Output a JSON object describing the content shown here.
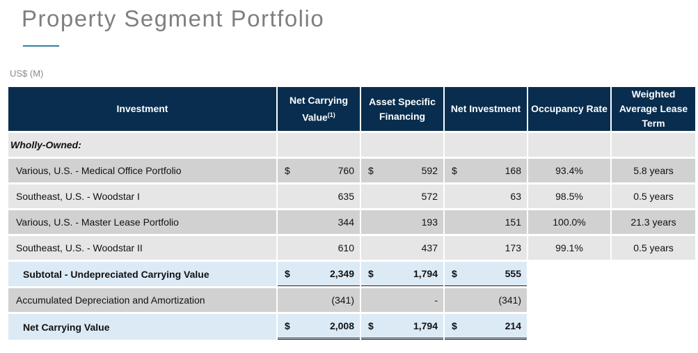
{
  "page": {
    "title": "Property Segment Portfolio",
    "unit": "US$ (M)"
  },
  "table": {
    "headers": {
      "investment": "Investment",
      "ncv": "Net Carrying Value",
      "ncv_note": "(1)",
      "financing": "Asset Specific Financing",
      "net_investment": "Net Investment",
      "occupancy": "Occupancy Rate",
      "walt": "Weighted Average Lease Term"
    },
    "section_label": "Wholly-Owned:",
    "currency_symbol": "$",
    "rows": [
      {
        "name": "Various, U.S. - Medical Office Portfolio",
        "ncv": "760",
        "financing": "592",
        "net": "168",
        "occupancy": "93.4%",
        "term": "5.8 years"
      },
      {
        "name": "Southeast, U.S. - Woodstar I",
        "ncv": "635",
        "financing": "572",
        "net": "63",
        "occupancy": "98.5%",
        "term": "0.5 years"
      },
      {
        "name": "Various, U.S. - Master Lease Portfolio",
        "ncv": "344",
        "financing": "193",
        "net": "151",
        "occupancy": "100.0%",
        "term": "21.3 years"
      },
      {
        "name": "Southeast, U.S. - Woodstar II",
        "ncv": "610",
        "financing": "437",
        "net": "173",
        "occupancy": "99.1%",
        "term": "0.5 years"
      }
    ],
    "subtotal": {
      "name": "Subtotal - Undepreciated Carrying Value",
      "ncv": "2,349",
      "financing": "1,794",
      "net": "555"
    },
    "accumulated": {
      "name": "Accumulated Depreciation and Amortization",
      "ncv": "(341)",
      "financing": "-",
      "net": "(341)"
    },
    "total": {
      "name": "Net Carrying Value",
      "ncv": "2,008",
      "financing": "1,794",
      "net": "214"
    }
  }
}
